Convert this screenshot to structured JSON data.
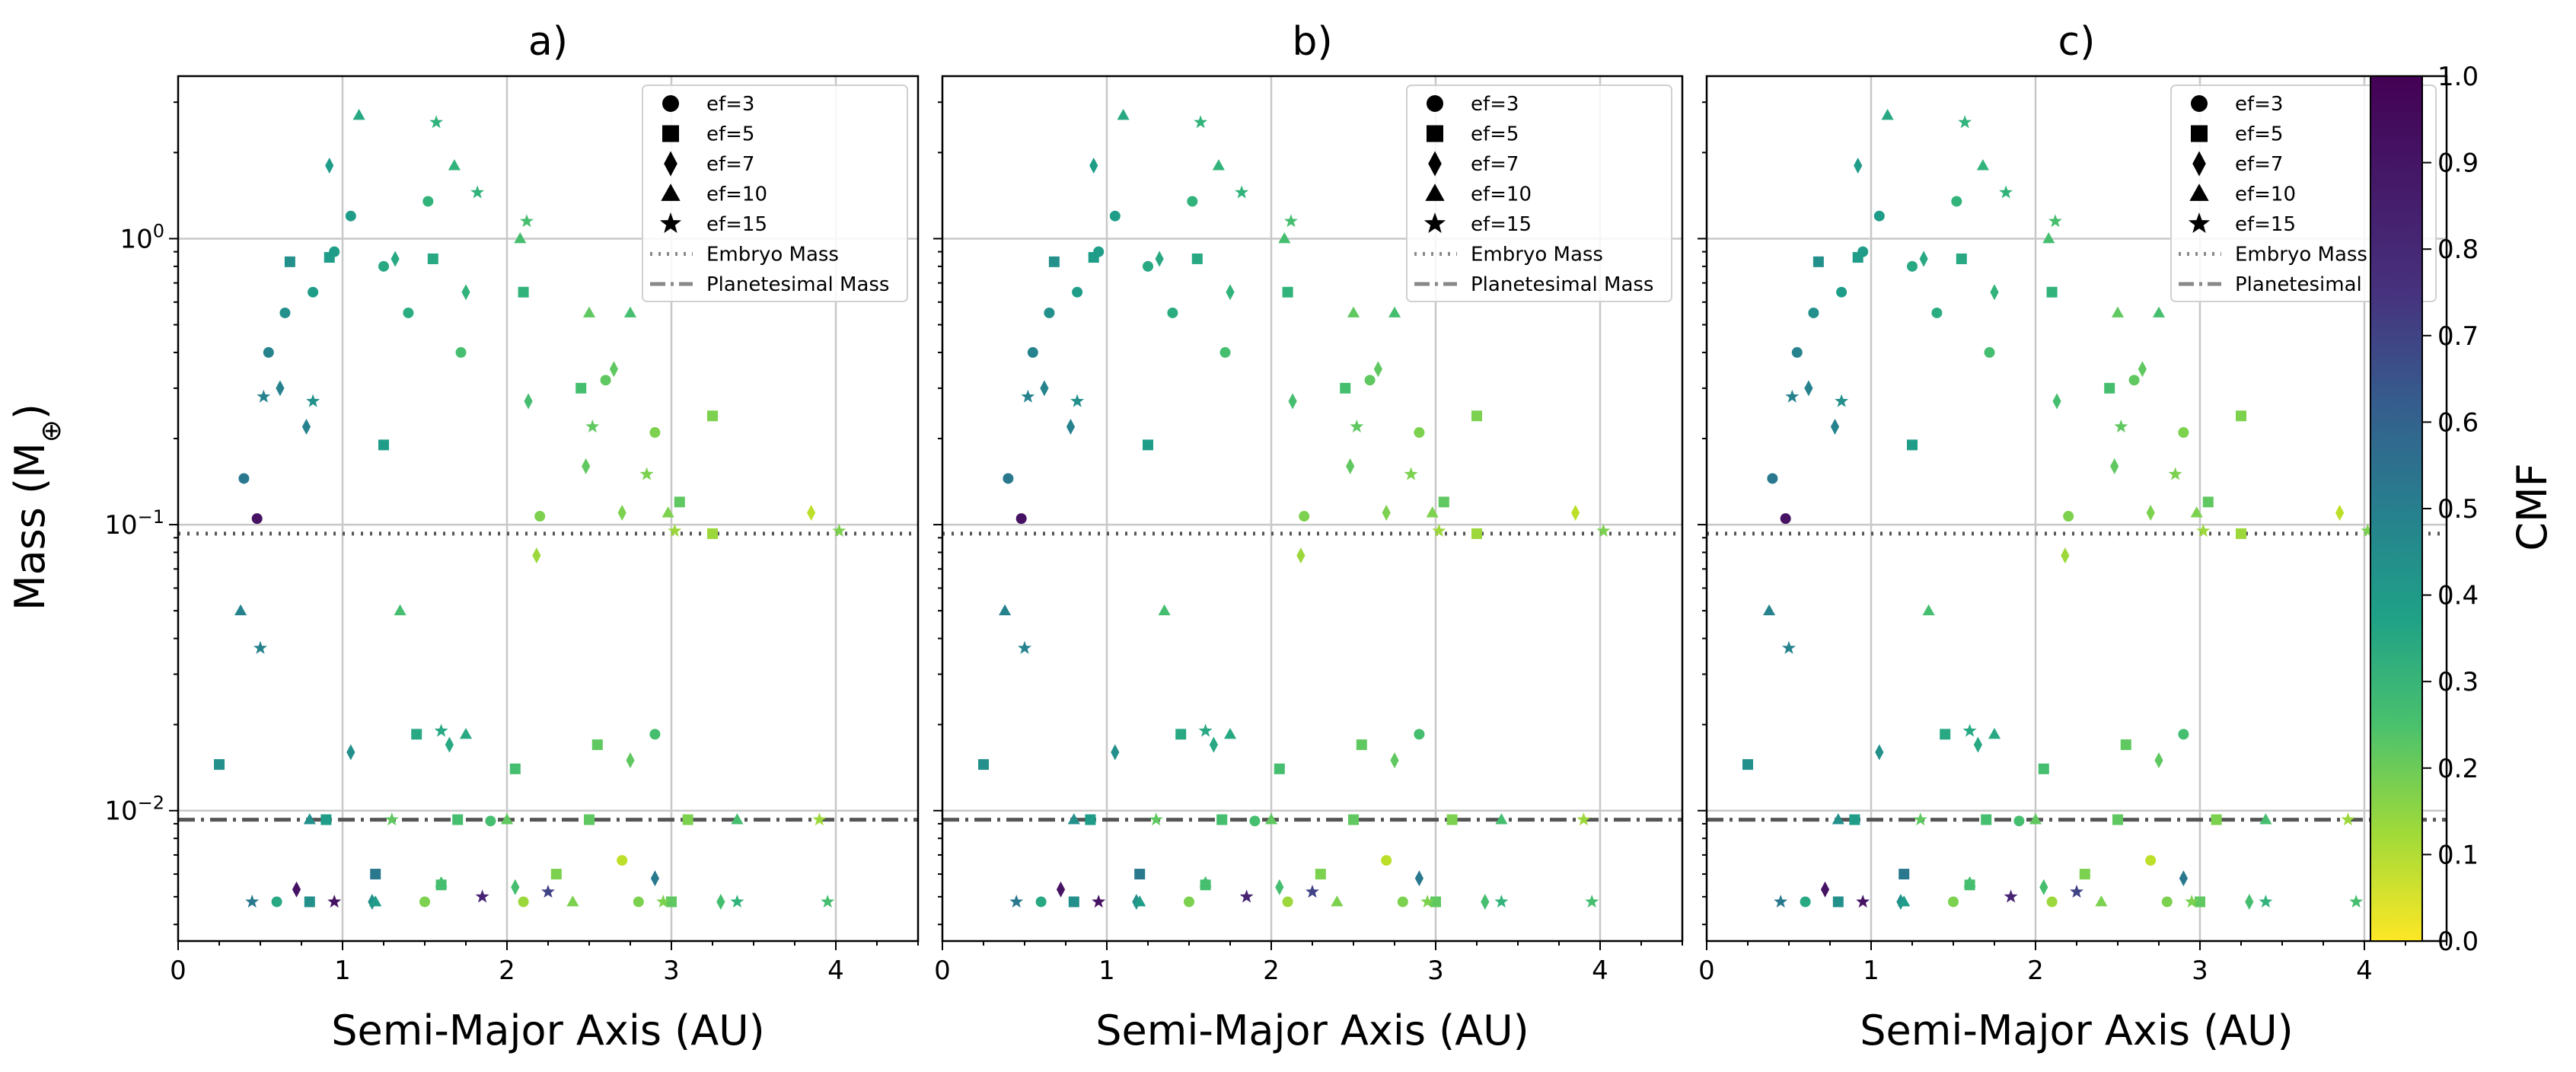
{
  "figure": {
    "ylabel": "Mass (M⊕)",
    "xlabel": "Semi-Major Axis (AU)",
    "colorbar": {
      "label": "CMF",
      "ticks": [
        "0.0",
        "0.1",
        "0.2",
        "0.3",
        "0.4",
        "0.5",
        "0.6",
        "0.7",
        "0.8",
        "0.9",
        "1.0"
      ]
    }
  },
  "legend": [
    {
      "name": "marker-circle",
      "label": "ef=3",
      "marker": "circle"
    },
    {
      "name": "marker-square",
      "label": "ef=5",
      "marker": "square"
    },
    {
      "name": "marker-diamond",
      "label": "ef=7",
      "marker": "diamond"
    },
    {
      "name": "marker-triangle",
      "label": "ef=10",
      "marker": "triangle"
    },
    {
      "name": "marker-star",
      "label": "ef=15",
      "marker": "star"
    },
    {
      "name": "embryo-line",
      "label": "Embryo Mass",
      "line": "dotted"
    },
    {
      "name": "planetesimal-line",
      "label": "Planetesimal Mass",
      "line": "dashdot"
    }
  ],
  "chart_data": [
    {
      "type": "scatter",
      "title": "a)",
      "xlabel": "Semi-Major Axis (AU)",
      "ylabel": "Mass (M⊕)",
      "xlim": [
        0,
        4.5
      ],
      "ylim": [
        0.0035,
        3.7
      ],
      "yscale": "log",
      "xticks": [
        "0",
        "1",
        "2",
        "3",
        "4"
      ],
      "yticks": [
        "10^-2",
        "10^-1",
        "10^0"
      ],
      "grid": true,
      "legend_position": "top-right",
      "hlines": {
        "embryo_mass": 0.093,
        "planetesimal_mass": 0.0093
      },
      "colormap": "viridis_r",
      "color_variable": "CMF",
      "color_range": [
        0,
        1
      ],
      "series": [
        {
          "name": "ef=3",
          "marker": "circle",
          "points": [
            [
              0.48,
              0.105,
              0.95
            ],
            [
              0.4,
              0.145,
              0.6
            ],
            [
              0.55,
              0.4,
              0.55
            ],
            [
              0.65,
              0.55,
              0.5
            ],
            [
              0.82,
              0.65,
              0.45
            ],
            [
              0.95,
              0.9,
              0.45
            ],
            [
              1.05,
              1.2,
              0.45
            ],
            [
              1.25,
              0.8,
              0.4
            ],
            [
              1.4,
              0.55,
              0.38
            ],
            [
              1.52,
              1.35,
              0.35
            ],
            [
              1.72,
              0.4,
              0.3
            ],
            [
              2.2,
              0.107,
              0.2
            ],
            [
              2.6,
              0.32,
              0.25
            ],
            [
              2.9,
              0.21,
              0.2
            ],
            [
              2.9,
              0.0185,
              0.3
            ],
            [
              0.6,
              0.0048,
              0.4
            ],
            [
              1.5,
              0.0048,
              0.2
            ],
            [
              2.1,
              0.0048,
              0.15
            ],
            [
              2.8,
              0.0048,
              0.2
            ],
            [
              1.9,
              0.0092,
              0.3
            ],
            [
              2.7,
              0.0067,
              0.1
            ]
          ]
        },
        {
          "name": "ef=5",
          "marker": "square",
          "points": [
            [
              0.25,
              0.0145,
              0.5
            ],
            [
              0.68,
              0.83,
              0.5
            ],
            [
              0.92,
              0.86,
              0.45
            ],
            [
              1.25,
              0.19,
              0.45
            ],
            [
              1.55,
              0.85,
              0.4
            ],
            [
              2.1,
              0.65,
              0.35
            ],
            [
              2.45,
              0.3,
              0.3
            ],
            [
              3.05,
              0.12,
              0.25
            ],
            [
              3.25,
              0.093,
              0.15
            ],
            [
              3.25,
              0.24,
              0.2
            ],
            [
              1.45,
              0.0185,
              0.4
            ],
            [
              2.05,
              0.014,
              0.3
            ],
            [
              2.55,
              0.017,
              0.25
            ],
            [
              0.9,
              0.0093,
              0.45
            ],
            [
              1.7,
              0.0093,
              0.3
            ],
            [
              2.5,
              0.0093,
              0.25
            ],
            [
              3.1,
              0.0093,
              0.2
            ],
            [
              1.2,
              0.006,
              0.6
            ],
            [
              0.8,
              0.0048,
              0.5
            ],
            [
              1.6,
              0.0055,
              0.3
            ],
            [
              2.3,
              0.006,
              0.2
            ],
            [
              3.0,
              0.0048,
              0.25
            ]
          ]
        },
        {
          "name": "ef=7",
          "marker": "diamond",
          "points": [
            [
              0.62,
              0.3,
              0.55
            ],
            [
              0.78,
              0.22,
              0.55
            ],
            [
              0.92,
              1.8,
              0.45
            ],
            [
              1.32,
              0.85,
              0.4
            ],
            [
              1.75,
              0.65,
              0.35
            ],
            [
              2.13,
              0.27,
              0.3
            ],
            [
              2.18,
              0.078,
              0.15
            ],
            [
              2.48,
              0.16,
              0.25
            ],
            [
              2.7,
              0.11,
              0.2
            ],
            [
              2.65,
              0.35,
              0.25
            ],
            [
              3.85,
              0.11,
              0.1
            ],
            [
              1.05,
              0.016,
              0.5
            ],
            [
              1.65,
              0.017,
              0.4
            ],
            [
              2.75,
              0.015,
              0.25
            ],
            [
              0.72,
              0.0053,
              0.95
            ],
            [
              1.18,
              0.0048,
              0.5
            ],
            [
              2.05,
              0.0054,
              0.3
            ],
            [
              2.9,
              0.0058,
              0.6
            ],
            [
              3.3,
              0.0048,
              0.3
            ]
          ]
        },
        {
          "name": "ef=10",
          "marker": "triangle",
          "points": [
            [
              0.38,
              0.05,
              0.55
            ],
            [
              1.1,
              2.7,
              0.4
            ],
            [
              1.35,
              0.05,
              0.3
            ],
            [
              1.68,
              1.8,
              0.35
            ],
            [
              2.08,
              1.0,
              0.3
            ],
            [
              2.5,
              0.55,
              0.25
            ],
            [
              2.98,
              0.11,
              0.2
            ],
            [
              2.75,
              0.55,
              0.3
            ],
            [
              1.75,
              0.0185,
              0.4
            ],
            [
              0.8,
              0.0093,
              0.5
            ],
            [
              2.0,
              0.0093,
              0.25
            ],
            [
              3.4,
              0.0093,
              0.3
            ],
            [
              1.2,
              0.0048,
              0.45
            ],
            [
              2.4,
              0.0048,
              0.2
            ],
            [
              1.6,
              0.0056,
              0.3
            ]
          ]
        },
        {
          "name": "ef=15",
          "marker": "star",
          "points": [
            [
              0.5,
              0.037,
              0.55
            ],
            [
              0.52,
              0.28,
              0.55
            ],
            [
              0.82,
              0.27,
              0.5
            ],
            [
              1.57,
              2.55,
              0.35
            ],
            [
              1.82,
              1.45,
              0.35
            ],
            [
              2.12,
              1.15,
              0.3
            ],
            [
              2.52,
              0.22,
              0.25
            ],
            [
              2.85,
              0.15,
              0.2
            ],
            [
              3.02,
              0.095,
              0.15
            ],
            [
              4.02,
              0.095,
              0.2
            ],
            [
              3.95,
              0.0048,
              0.3
            ],
            [
              1.6,
              0.019,
              0.4
            ],
            [
              0.45,
              0.0048,
              0.6
            ],
            [
              0.95,
              0.0048,
              0.95
            ],
            [
              1.85,
              0.005,
              0.9
            ],
            [
              2.25,
              0.0052,
              0.8
            ],
            [
              2.95,
              0.0048,
              0.2
            ],
            [
              3.4,
              0.0048,
              0.35
            ],
            [
              3.9,
              0.0093,
              0.15
            ],
            [
              1.3,
              0.0093,
              0.25
            ]
          ]
        }
      ]
    },
    {
      "type": "scatter",
      "title": "b)",
      "xlabel": "Semi-Major Axis (AU)",
      "xlim": [
        0,
        4.5
      ],
      "ylim": [
        0.0035,
        3.7
      ],
      "yscale": "log",
      "xticks": [
        "0",
        "1",
        "2",
        "3",
        "4"
      ],
      "grid": true,
      "legend_position": "top-right",
      "same_data_as_panel": "a)"
    },
    {
      "type": "scatter",
      "title": "c)",
      "xlabel": "Semi-Major Axis (AU)",
      "xlim": [
        0,
        4.5
      ],
      "ylim": [
        0.0035,
        3.7
      ],
      "yscale": "log",
      "xticks": [
        "0",
        "1",
        "2",
        "3",
        "4"
      ],
      "grid": true,
      "legend_position": "top-right",
      "same_data_as_panel": "a)"
    }
  ]
}
